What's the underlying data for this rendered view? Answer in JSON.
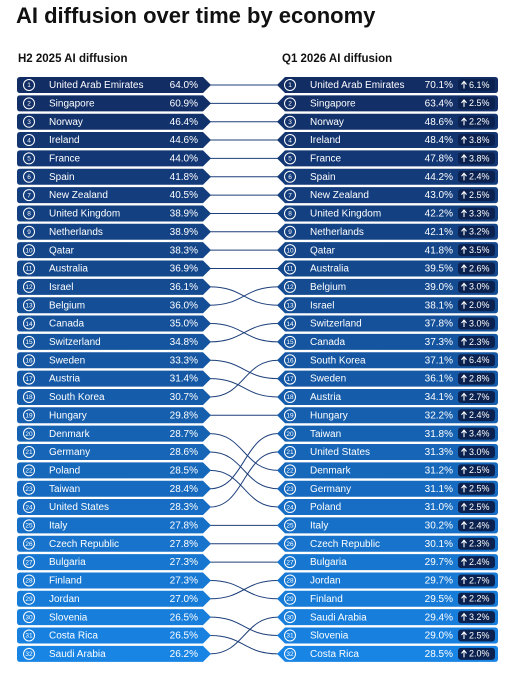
{
  "title": "AI diffusion over time by economy",
  "left": {
    "title": "H2 2025 AI diffusion",
    "rows": [
      [
        1,
        "United Arab Emirates",
        "64.0%"
      ],
      [
        2,
        "Singapore",
        "60.9%"
      ],
      [
        3,
        "Norway",
        "46.4%"
      ],
      [
        4,
        "Ireland",
        "44.6%"
      ],
      [
        5,
        "France",
        "44.0%"
      ],
      [
        6,
        "Spain",
        "41.8%"
      ],
      [
        7,
        "New Zealand",
        "40.5%"
      ],
      [
        8,
        "United Kingdom",
        "38.9%"
      ],
      [
        9,
        "Netherlands",
        "38.9%"
      ],
      [
        10,
        "Qatar",
        "38.3%"
      ],
      [
        11,
        "Australia",
        "36.9%"
      ],
      [
        12,
        "Israel",
        "36.1%"
      ],
      [
        13,
        "Belgium",
        "36.0%"
      ],
      [
        14,
        "Canada",
        "35.0%"
      ],
      [
        15,
        "Switzerland",
        "34.8%"
      ],
      [
        16,
        "Sweden",
        "33.3%"
      ],
      [
        17,
        "Austria",
        "31.4%"
      ],
      [
        18,
        "South Korea",
        "30.7%"
      ],
      [
        19,
        "Hungary",
        "29.8%"
      ],
      [
        20,
        "Denmark",
        "28.7%"
      ],
      [
        21,
        "Germany",
        "28.6%"
      ],
      [
        22,
        "Poland",
        "28.5%"
      ],
      [
        23,
        "Taiwan",
        "28.4%"
      ],
      [
        24,
        "United States",
        "28.3%"
      ],
      [
        25,
        "Italy",
        "27.8%"
      ],
      [
        26,
        "Czech Republic",
        "27.8%"
      ],
      [
        27,
        "Bulgaria",
        "27.3%"
      ],
      [
        28,
        "Finland",
        "27.3%"
      ],
      [
        29,
        "Jordan",
        "27.0%"
      ],
      [
        30,
        "Slovenia",
        "26.5%"
      ],
      [
        31,
        "Costa Rica",
        "26.5%"
      ],
      [
        32,
        "Saudi Arabia",
        "26.2%"
      ]
    ]
  },
  "right": {
    "title": "Q1 2026 AI diffusion",
    "rows": [
      [
        1,
        "United Arab Emirates",
        "70.1%",
        "6.1%"
      ],
      [
        2,
        "Singapore",
        "63.4%",
        "2.5%"
      ],
      [
        3,
        "Norway",
        "48.6%",
        "2.2%"
      ],
      [
        4,
        "Ireland",
        "48.4%",
        "3.8%"
      ],
      [
        5,
        "France",
        "47.8%",
        "3.8%"
      ],
      [
        6,
        "Spain",
        "44.2%",
        "2.4%"
      ],
      [
        7,
        "New Zealand",
        "43.0%",
        "2.5%"
      ],
      [
        8,
        "United Kingdom",
        "42.2%",
        "3.3%"
      ],
      [
        9,
        "Netherlands",
        "42.1%",
        "3.2%"
      ],
      [
        10,
        "Qatar",
        "41.8%",
        "3.5%"
      ],
      [
        11,
        "Australia",
        "39.5%",
        "2.6%"
      ],
      [
        12,
        "Belgium",
        "39.0%",
        "3.0%"
      ],
      [
        13,
        "Israel",
        "38.1%",
        "2.0%"
      ],
      [
        14,
        "Switzerland",
        "37.8%",
        "3.0%"
      ],
      [
        15,
        "Canada",
        "37.3%",
        "2.3%"
      ],
      [
        16,
        "South Korea",
        "37.1%",
        "6.4%"
      ],
      [
        17,
        "Sweden",
        "36.1%",
        "2.8%"
      ],
      [
        18,
        "Austria",
        "34.1%",
        "2.7%"
      ],
      [
        19,
        "Hungary",
        "32.2%",
        "2.4%"
      ],
      [
        20,
        "Taiwan",
        "31.8%",
        "3.4%"
      ],
      [
        21,
        "United States",
        "31.3%",
        "3.0%"
      ],
      [
        22,
        "Denmark",
        "31.2%",
        "2.5%"
      ],
      [
        23,
        "Germany",
        "31.1%",
        "2.5%"
      ],
      [
        24,
        "Poland",
        "31.0%",
        "2.5%"
      ],
      [
        25,
        "Italy",
        "30.2%",
        "2.4%"
      ],
      [
        26,
        "Czech Republic",
        "30.1%",
        "2.3%"
      ],
      [
        27,
        "Bulgaria",
        "29.7%",
        "2.4%"
      ],
      [
        28,
        "Jordan",
        "29.7%",
        "2.7%"
      ],
      [
        29,
        "Finland",
        "29.5%",
        "2.2%"
      ],
      [
        30,
        "Saudi Arabia",
        "29.4%",
        "3.2%"
      ],
      [
        31,
        "Slovenia",
        "29.0%",
        "2.5%"
      ],
      [
        32,
        "Costa Rica",
        "28.5%",
        "2.0%"
      ]
    ]
  }
}
